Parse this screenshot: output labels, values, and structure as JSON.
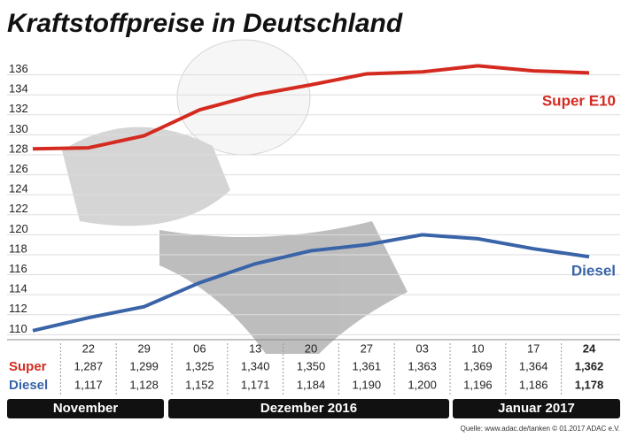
{
  "chart_data": {
    "type": "line",
    "title": "Kraftstoffpreise in Deutschland",
    "categories": [
      null,
      "22",
      "29",
      "06",
      "13",
      "20",
      "27",
      "03",
      "10",
      "17",
      "24"
    ],
    "series": [
      {
        "name": "Super E10",
        "color": "#d42a20",
        "values": [
          128.6,
          128.7,
          129.9,
          132.5,
          134.0,
          135.0,
          136.1,
          136.3,
          136.9,
          136.4,
          136.2
        ],
        "value_labels": [
          null,
          "1,287",
          "1,299",
          "1,325",
          "1,340",
          "1,350",
          "1,361",
          "1,363",
          "1,369",
          "1,364",
          "1,362"
        ]
      },
      {
        "name": "Diesel",
        "color": "#3a64a8",
        "values": [
          110.4,
          111.7,
          112.8,
          115.2,
          117.1,
          118.4,
          119.0,
          120.0,
          119.6,
          118.6,
          117.8
        ],
        "value_labels": [
          null,
          "1,117",
          "1,128",
          "1,152",
          "1,171",
          "1,184",
          "1,190",
          "1,200",
          "1,196",
          "1,186",
          "1,178"
        ]
      }
    ],
    "table_row_labels": [
      "Super",
      "Diesel"
    ],
    "months": [
      "November",
      "Dezember 2016",
      "Januar 2017"
    ],
    "source": "Quelle: www.adac.de/tanken  © 01.2017  ADAC e.V.",
    "ylim": [
      109.5,
      138
    ],
    "yticks": [
      110,
      112,
      114,
      116,
      118,
      120,
      122,
      124,
      126,
      128,
      130,
      132,
      134,
      136
    ],
    "grid": true
  }
}
